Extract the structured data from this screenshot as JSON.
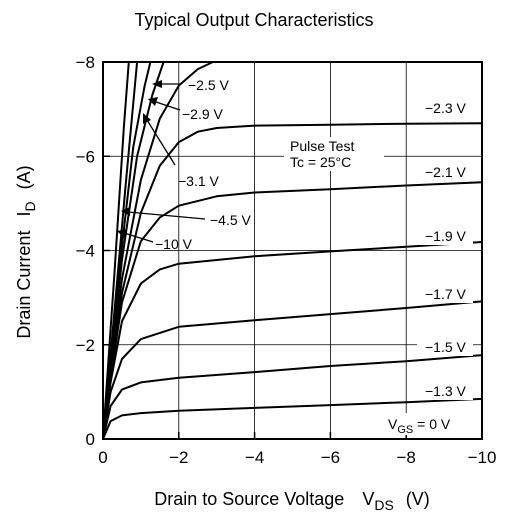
{
  "chart_data": {
    "type": "line",
    "title": "Typical Output Characteristics",
    "xlabel": "Drain to Source Voltage",
    "xlabel_symbol": "V",
    "xlabel_sub": "DS",
    "xlabel_unit": "(V)",
    "ylabel": "Drain Current",
    "ylabel_symbol": "I",
    "ylabel_sub": "D",
    "ylabel_unit": "(A)",
    "xlim": [
      0,
      -10
    ],
    "ylim": [
      0,
      -8
    ],
    "xticks": [
      0,
      -2,
      -4,
      -6,
      -8,
      -10
    ],
    "xtick_labels": [
      "0",
      "−2",
      "−4",
      "−6",
      "−8",
      "−10"
    ],
    "yticks": [
      0,
      -2,
      -4,
      -6,
      -8
    ],
    "ytick_labels": [
      "0",
      "−2",
      "−4",
      "−6",
      "−8"
    ],
    "grid": true,
    "legend_placement": "none",
    "annotation": {
      "line1": "Pulse Test",
      "line2": "Tc = 25°C"
    },
    "vgs_label": {
      "symbol": "V",
      "sub": "GS",
      "rest": " = 0 V"
    },
    "series": [
      {
        "label": "−1.3 V",
        "x": [
          0,
          -0.2,
          -0.5,
          -1,
          -2,
          -4,
          -6,
          -8,
          -10
        ],
        "y": [
          0,
          -0.38,
          -0.5,
          -0.55,
          -0.6,
          -0.66,
          -0.72,
          -0.78,
          -0.85
        ]
      },
      {
        "label": "−1.5 V",
        "x": [
          0,
          -0.2,
          -0.5,
          -1,
          -2,
          -4,
          -6,
          -8,
          -10
        ],
        "y": [
          0,
          -0.7,
          -1.05,
          -1.2,
          -1.3,
          -1.42,
          -1.55,
          -1.65,
          -1.78
        ]
      },
      {
        "label": "−1.7 V",
        "x": [
          0,
          -0.2,
          -0.5,
          -1,
          -2,
          -4,
          -6,
          -8,
          -10
        ],
        "y": [
          0,
          -1.0,
          -1.7,
          -2.12,
          -2.38,
          -2.52,
          -2.65,
          -2.78,
          -2.92
        ]
      },
      {
        "label": "−1.9 V",
        "x": [
          0,
          -0.2,
          -0.5,
          -1,
          -1.5,
          -2,
          -4,
          -6,
          -8,
          -10
        ],
        "y": [
          0,
          -1.2,
          -2.5,
          -3.3,
          -3.6,
          -3.72,
          -3.88,
          -3.98,
          -4.08,
          -4.18
        ]
      },
      {
        "label": "−2.1 V",
        "x": [
          0,
          -0.2,
          -0.5,
          -1,
          -1.5,
          -2,
          -3,
          -4,
          -6,
          -8,
          -10
        ],
        "y": [
          0,
          -1.3,
          -2.9,
          -4.2,
          -4.7,
          -4.95,
          -5.15,
          -5.23,
          -5.3,
          -5.38,
          -5.45
        ]
      },
      {
        "label": "−2.3 V",
        "x": [
          0,
          -0.2,
          -0.5,
          -1,
          -1.5,
          -2,
          -2.5,
          -3,
          -4,
          -6,
          -8,
          -10
        ],
        "y": [
          0,
          -1.4,
          -3.1,
          -4.8,
          -5.8,
          -6.3,
          -6.52,
          -6.6,
          -6.65,
          -6.67,
          -6.69,
          -6.7
        ]
      },
      {
        "label": "−2.5 V",
        "x": [
          0,
          -0.2,
          -0.5,
          -1,
          -1.5,
          -2,
          -2.5,
          -2.9
        ],
        "y": [
          0,
          -1.5,
          -3.4,
          -5.5,
          -6.8,
          -7.5,
          -7.85,
          -8.0
        ]
      },
      {
        "label": "−2.9 V",
        "x": [
          0,
          -0.2,
          -0.5,
          -0.9,
          -1.3,
          -1.6
        ],
        "y": [
          0,
          -1.6,
          -3.8,
          -6.0,
          -7.3,
          -8.0
        ]
      },
      {
        "label": "−3.1 V",
        "x": [
          0,
          -0.2,
          -0.5,
          -0.8,
          -1.1,
          -1.25
        ],
        "y": [
          0,
          -1.7,
          -4.1,
          -6.2,
          -7.5,
          -8.0
        ]
      },
      {
        "label": "−4.5 V",
        "x": [
          0,
          -0.3,
          -0.6,
          -0.9
        ],
        "y": [
          0,
          -2.7,
          -5.4,
          -8.0
        ]
      },
      {
        "label": "−10 V",
        "x": [
          0,
          -0.3,
          -0.55,
          -0.68
        ],
        "y": [
          0,
          -3.5,
          -6.6,
          -8.0
        ]
      }
    ]
  }
}
